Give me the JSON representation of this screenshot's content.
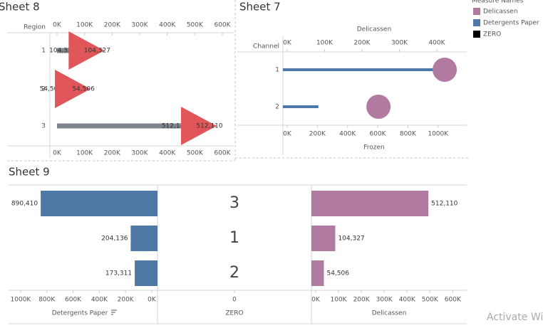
{
  "chart_data": [
    {
      "type": "bar",
      "title": "Sheet 8",
      "ylabel": "Region",
      "categories": [
        "1",
        "2",
        "3"
      ],
      "series": [
        {
          "color": "#7f868c",
          "values": [
            104327,
            54506,
            512110
          ],
          "value_labels": [
            "104,327",
            "54,506",
            "512,110"
          ]
        },
        {
          "color": "#e15759",
          "marker": "triangle",
          "values": [
            104327,
            54506,
            512110
          ],
          "value_labels": [
            "104,327",
            "54,506",
            "512,110"
          ]
        }
      ],
      "xlim": [
        0,
        640000
      ],
      "xticks": [
        {
          "value": 0,
          "label": "0K"
        },
        {
          "value": 100000,
          "label": "100K"
        },
        {
          "value": 200000,
          "label": "200K"
        },
        {
          "value": 300000,
          "label": "300K"
        },
        {
          "value": 400000,
          "label": "400K"
        },
        {
          "value": 500000,
          "label": "500K"
        },
        {
          "value": 600000,
          "label": "600K"
        }
      ]
    },
    {
      "type": "dot",
      "title": "Sheet 7",
      "ylabel": "Channel",
      "categories": [
        "1",
        "2"
      ],
      "xlabel": "Delicassen",
      "x2label": "Frozen",
      "series": [
        {
          "color": "#4e79a7",
          "axis": "x2",
          "values": [
            1030000,
            207000
          ]
        },
        {
          "color": "#b07aa1",
          "marker": "circle",
          "values": [
            421000,
            244000
          ]
        }
      ],
      "xlim": [
        0,
        480000
      ],
      "xticks": [
        {
          "value": 0,
          "label": "0K"
        },
        {
          "value": 100000,
          "label": "100K"
        },
        {
          "value": 200000,
          "label": "200K"
        },
        {
          "value": 300000,
          "label": "300K"
        },
        {
          "value": 400000,
          "label": "400K"
        }
      ],
      "x2lim": [
        0,
        1190000
      ],
      "x2ticks": [
        {
          "value": 0,
          "label": "0K"
        },
        {
          "value": 200000,
          "label": "200K"
        },
        {
          "value": 400000,
          "label": "400K"
        },
        {
          "value": 600000,
          "label": "600K"
        },
        {
          "value": 800000,
          "label": "800K"
        },
        {
          "value": 1000000,
          "label": "1000K"
        }
      ]
    },
    {
      "type": "butterfly",
      "title": "Sheet 9",
      "categories": [
        "3",
        "1",
        "2"
      ],
      "panes": [
        {
          "label": "Detergents Paper",
          "color": "#4e79a7",
          "reversed": true,
          "values": [
            890410,
            204136,
            173311
          ],
          "value_labels": [
            "890,410",
            "204,136",
            "173,311"
          ],
          "xlim": [
            0,
            1130000
          ],
          "xticks": [
            {
              "value": 1000000,
              "label": "1000K"
            },
            {
              "value": 800000,
              "label": "800K"
            },
            {
              "value": 600000,
              "label": "600K"
            },
            {
              "value": 400000,
              "label": "400K"
            },
            {
              "value": 200000,
              "label": "200K"
            },
            {
              "value": 0,
              "label": "0K"
            }
          ]
        },
        {
          "label": "ZERO",
          "xticks": [
            0
          ]
        },
        {
          "label": "Delicassen",
          "color": "#b07aa1",
          "values": [
            512110,
            104327,
            54506
          ],
          "value_labels": [
            "512,110",
            "104,327",
            "54,506"
          ],
          "xlim": [
            0,
            680000
          ],
          "xticks": [
            {
              "value": 0,
              "label": "0K"
            },
            {
              "value": 100000,
              "label": "100K"
            },
            {
              "value": 200000,
              "label": "200K"
            },
            {
              "value": 300000,
              "label": "300K"
            },
            {
              "value": 400000,
              "label": "400K"
            },
            {
              "value": 500000,
              "label": "500K"
            },
            {
              "value": 600000,
              "label": "600K"
            }
          ]
        }
      ]
    }
  ],
  "legend": {
    "title": "Measure Names",
    "items": [
      {
        "name": "Delicassen",
        "color": "#b07aa1"
      },
      {
        "name": "Detergents Paper",
        "color": "#4e79a7"
      },
      {
        "name": "ZERO",
        "color": "#000000"
      }
    ]
  },
  "watermark": "Activate Wi"
}
